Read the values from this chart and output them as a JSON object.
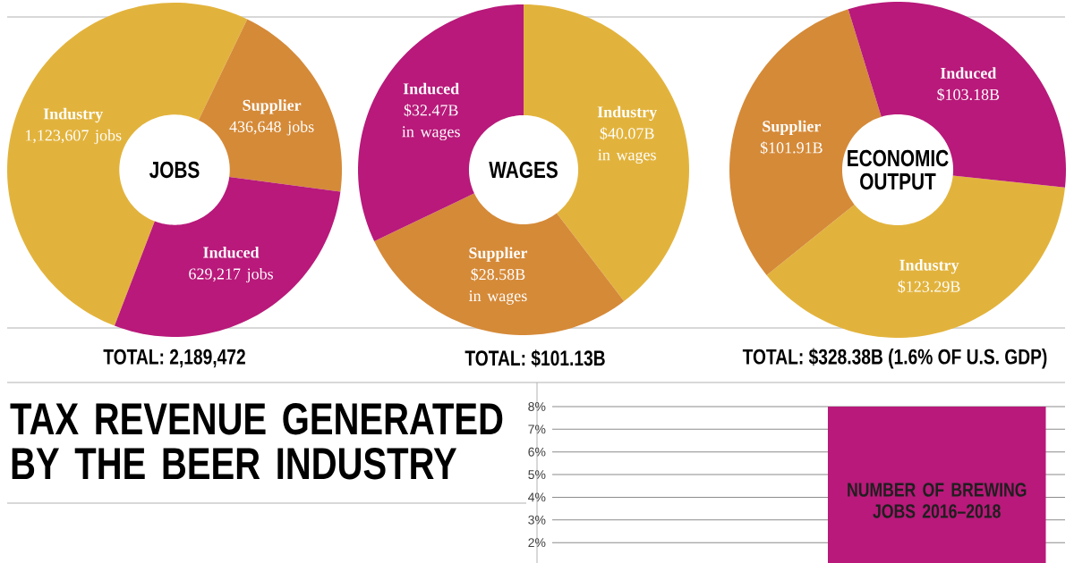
{
  "chart_data": [
    {
      "type": "donut",
      "title": "JOBS",
      "categories": [
        "Industry",
        "Supplier",
        "Induced"
      ],
      "values": [
        1123607,
        436648,
        629217
      ],
      "colors": [
        "#e2b33c",
        "#d58a38",
        "#b8197a"
      ],
      "value_labels": [
        "1,123,607 jobs",
        "436,648 jobs",
        "629,217 jobs"
      ],
      "annotations": [
        "TOTAL: 2,189,472"
      ]
    },
    {
      "type": "donut",
      "title": "WAGES",
      "categories": [
        "Industry",
        "Supplier",
        "Induced"
      ],
      "values": [
        40.07,
        28.58,
        32.47
      ],
      "colors": [
        "#e2b33c",
        "#d58a38",
        "#b8197a"
      ],
      "value_labels": [
        "$40.07B in wages",
        "$28.58B in wages",
        "$32.47B in wages"
      ],
      "annotations": [
        "TOTAL: $101.13B"
      ]
    },
    {
      "type": "donut",
      "title": "ECONOMIC OUTPUT",
      "categories": [
        "Industry",
        "Supplier",
        "Induced"
      ],
      "values": [
        123.29,
        101.91,
        103.18
      ],
      "colors": [
        "#e2b33c",
        "#d58a38",
        "#b8197a"
      ],
      "value_labels": [
        "$123.29B",
        "$101.91B",
        "$103.18B"
      ],
      "annotations": [
        "TOTAL: $328.38B (1.6% OF U.S. GDP)"
      ]
    },
    {
      "type": "other",
      "title": "TAX REVENUE GENERATED BY THE BEER INDUSTRY"
    },
    {
      "type": "bar",
      "categories": [
        null,
        "NUMBER OF BREWING JOBS 2016–2018"
      ],
      "values": [
        null,
        8
      ],
      "color": "#b8197a",
      "ylim": [
        1.1,
        8
      ],
      "yticks": [
        {
          "value": 2,
          "label": "2%"
        },
        {
          "value": 3,
          "label": "3%"
        },
        {
          "value": 4,
          "label": "4%"
        },
        {
          "value": 5,
          "label": "5%"
        },
        {
          "value": 6,
          "label": "6%"
        },
        {
          "value": 7,
          "label": "7%"
        },
        {
          "value": 8,
          "label": "8%"
        }
      ],
      "grid": "y"
    }
  ]
}
